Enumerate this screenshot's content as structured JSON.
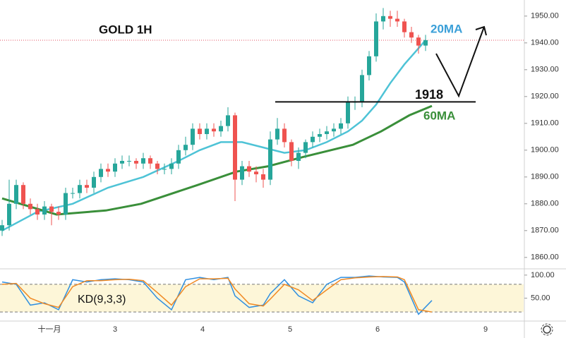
{
  "chart_data": [
    {
      "type": "candlestick",
      "title": "GOLD 1H",
      "x": [
        0,
        1,
        2,
        3,
        4,
        5,
        6,
        7,
        8,
        9,
        10,
        11,
        12,
        13,
        14,
        15,
        16,
        17,
        18,
        19,
        20,
        21,
        22,
        23,
        24,
        25,
        26,
        27,
        28,
        29,
        30,
        31,
        32,
        33,
        34,
        35,
        36,
        37,
        38,
        39,
        40,
        41,
        42,
        43,
        44,
        45,
        46,
        47,
        48,
        49,
        50,
        51,
        52,
        53,
        54,
        55,
        56,
        57,
        58,
        59,
        60
      ],
      "open": [
        1870,
        1872,
        1880,
        1887,
        1880,
        1878,
        1876,
        1879,
        1877,
        1876,
        1884,
        1884,
        1887,
        1886,
        1890,
        1893,
        1892,
        1895,
        1896,
        1896,
        1895,
        1897,
        1895,
        1893,
        1893,
        1895,
        1900,
        1902,
        1908,
        1906,
        1908,
        1907,
        1909,
        1913,
        1889,
        1894,
        1892,
        1891,
        1889,
        1904,
        1908,
        1903,
        1896,
        1899,
        1903,
        1905,
        1906,
        1907,
        1908,
        1910,
        1918,
        1918,
        1928,
        1935,
        1948,
        1950,
        1949,
        1948,
        1944,
        1942,
        1939
      ],
      "high": [
        1874,
        1889,
        1889,
        1888,
        1882,
        1880,
        1881,
        1880,
        1879,
        1886,
        1886,
        1889,
        1889,
        1892,
        1895,
        1895,
        1897,
        1898,
        1898,
        1897,
        1899,
        1898,
        1896,
        1895,
        1897,
        1902,
        1905,
        1910,
        1910,
        1910,
        1910,
        1911,
        1916,
        1914,
        1896,
        1896,
        1894,
        1893,
        1907,
        1912,
        1910,
        1904,
        1901,
        1904,
        1907,
        1908,
        1909,
        1910,
        1912,
        1920,
        1920,
        1930,
        1937,
        1951,
        1953,
        1952,
        1952,
        1949,
        1946,
        1943,
        1943
      ],
      "low": [
        1868,
        1870,
        1878,
        1878,
        1876,
        1874,
        1874,
        1872,
        1874,
        1874,
        1882,
        1882,
        1884,
        1884,
        1888,
        1890,
        1890,
        1893,
        1894,
        1893,
        1893,
        1893,
        1891,
        1891,
        1891,
        1893,
        1898,
        1900,
        1904,
        1904,
        1905,
        1905,
        1907,
        1881,
        1887,
        1890,
        1888,
        1886,
        1887,
        1902,
        1901,
        1894,
        1893,
        1897,
        1901,
        1903,
        1904,
        1905,
        1906,
        1908,
        1915,
        1916,
        1926,
        1933,
        1945,
        1946,
        1946,
        1942,
        1940,
        1936,
        1937
      ],
      "close": [
        1872,
        1880,
        1887,
        1880,
        1878,
        1876,
        1879,
        1877,
        1876,
        1884,
        1884,
        1887,
        1886,
        1890,
        1893,
        1892,
        1895,
        1896,
        1896,
        1895,
        1897,
        1895,
        1893,
        1893,
        1895,
        1900,
        1902,
        1908,
        1906,
        1908,
        1907,
        1909,
        1913,
        1889,
        1894,
        1892,
        1891,
        1889,
        1904,
        1908,
        1903,
        1896,
        1899,
        1903,
        1905,
        1906,
        1907,
        1908,
        1910,
        1918,
        1918,
        1928,
        1935,
        1948,
        1950,
        1949,
        1948,
        1944,
        1942,
        1939,
        1941
      ],
      "up_color": "#26a69a",
      "down_color": "#ef5350",
      "series": [
        {
          "name": "20MA",
          "color": "#4ec3d6",
          "x": [
            0,
            5,
            10,
            15,
            20,
            25,
            28,
            31,
            34,
            37,
            40,
            43,
            46,
            49,
            51,
            53,
            55,
            57,
            59,
            60
          ],
          "values": [
            1870,
            1877,
            1880,
            1886,
            1890,
            1896,
            1900,
            1903,
            1903,
            1901,
            1899,
            1900,
            1903,
            1907,
            1911,
            1917,
            1925,
            1932,
            1938,
            1941
          ]
        },
        {
          "name": "60MA",
          "color": "#3a8f3a",
          "x": [
            0,
            7.7,
            14.7,
            19.7,
            27.7,
            33.2,
            37.7,
            42.7,
            49.7,
            53.7,
            57.7,
            60.9
          ],
          "values": [
            1882,
            1876,
            1877.5,
            1880,
            1887,
            1892,
            1894,
            1897.5,
            1902,
            1907,
            1913,
            1916.5
          ]
        }
      ],
      "level": 1918,
      "level_label": "1918",
      "last_price": 1941,
      "ylim": [
        1856,
        1956
      ],
      "yticks": [
        {
          "value": 1860,
          "label": "1860.00"
        },
        {
          "value": 1870,
          "label": "1870.00"
        },
        {
          "value": 1880,
          "label": "1880.00"
        },
        {
          "value": 1890,
          "label": "1890.00"
        },
        {
          "value": 1900,
          "label": "1900.00"
        },
        {
          "value": 1910,
          "label": "1910.00"
        },
        {
          "value": 1920,
          "label": "1920.00"
        },
        {
          "value": 1930,
          "label": "1930.00"
        },
        {
          "value": 1940,
          "label": "1940.00"
        },
        {
          "value": 1950,
          "label": "1950.00"
        }
      ],
      "xlim": [
        -0.3,
        73.9
      ],
      "xticks": [
        {
          "value": 6.7,
          "label": "十一月"
        },
        {
          "value": 16,
          "label": "3"
        },
        {
          "value": 28.4,
          "label": "4"
        },
        {
          "value": 40.8,
          "label": "5"
        },
        {
          "value": 53.2,
          "label": "6"
        },
        {
          "value": 68.5,
          "label": "9"
        }
      ]
    },
    {
      "type": "line",
      "title": "KD(9,3,3)",
      "series": [
        {
          "name": "K",
          "color": "#2f8fe0",
          "x": [
            0,
            2,
            4,
            6,
            8,
            10,
            12,
            14,
            16,
            18,
            20,
            22,
            24,
            26,
            28,
            30,
            32,
            33,
            35,
            37,
            38,
            40,
            42,
            44,
            46,
            48,
            50,
            52,
            54,
            56,
            57,
            59,
            60.9
          ],
          "values": [
            85,
            80,
            35,
            40,
            25,
            90,
            85,
            90,
            92,
            90,
            85,
            50,
            25,
            90,
            95,
            90,
            95,
            55,
            30,
            35,
            60,
            90,
            55,
            40,
            80,
            95,
            95,
            98,
            96,
            95,
            85,
            15,
            45
          ]
        },
        {
          "name": "D",
          "color": "#f08a24",
          "x": [
            0,
            2,
            4,
            6,
            8,
            10,
            12,
            14,
            16,
            18,
            20,
            22,
            24,
            26,
            28,
            30,
            32,
            33,
            35,
            37,
            38,
            40,
            42,
            44,
            46,
            48,
            50,
            52,
            54,
            56,
            57,
            59,
            60.9
          ],
          "values": [
            80,
            82,
            50,
            38,
            30,
            75,
            88,
            88,
            90,
            91,
            88,
            62,
            35,
            75,
            92,
            92,
            93,
            70,
            38,
            33,
            48,
            80,
            68,
            45,
            68,
            90,
            94,
            96,
            97,
            96,
            90,
            25,
            20
          ]
        }
      ],
      "bands": [
        20,
        80
      ],
      "ylim": [
        5,
        112
      ],
      "yticks": [
        {
          "value": 50,
          "label": "50.00"
        },
        {
          "value": 100,
          "label": "100.00"
        }
      ]
    }
  ]
}
